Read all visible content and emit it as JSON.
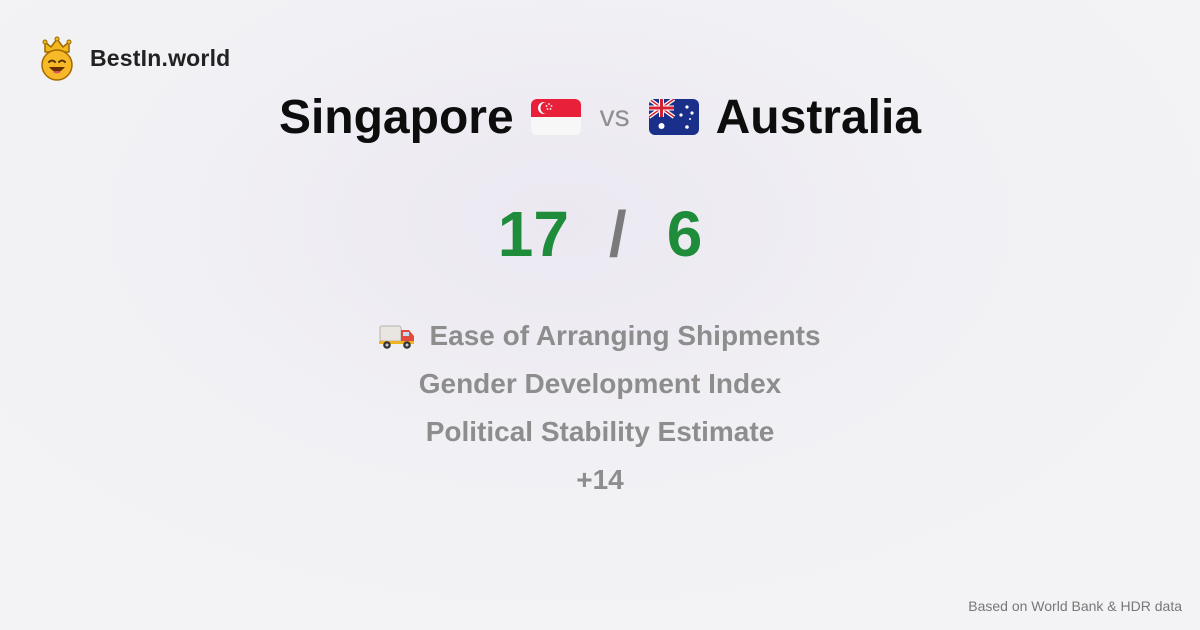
{
  "brand": {
    "name": "BestIn.world",
    "icon": "crown-smiley-icon"
  },
  "comparison": {
    "left_country": "Singapore",
    "left_flag": "singapore-flag",
    "vs": "vs",
    "right_country": "Australia",
    "right_flag": "australia-flag"
  },
  "score": {
    "left": "17",
    "separator": "/",
    "right": "6",
    "color": "#1f8c3b"
  },
  "metrics": [
    {
      "label": "Ease of Arranging Shipments",
      "icon": "delivery-truck-icon"
    },
    {
      "label": "Gender Development Index"
    },
    {
      "label": "Political Stability Estimate"
    },
    {
      "label": "+14"
    }
  ],
  "footer": {
    "source": "Based on World Bank & HDR data"
  }
}
